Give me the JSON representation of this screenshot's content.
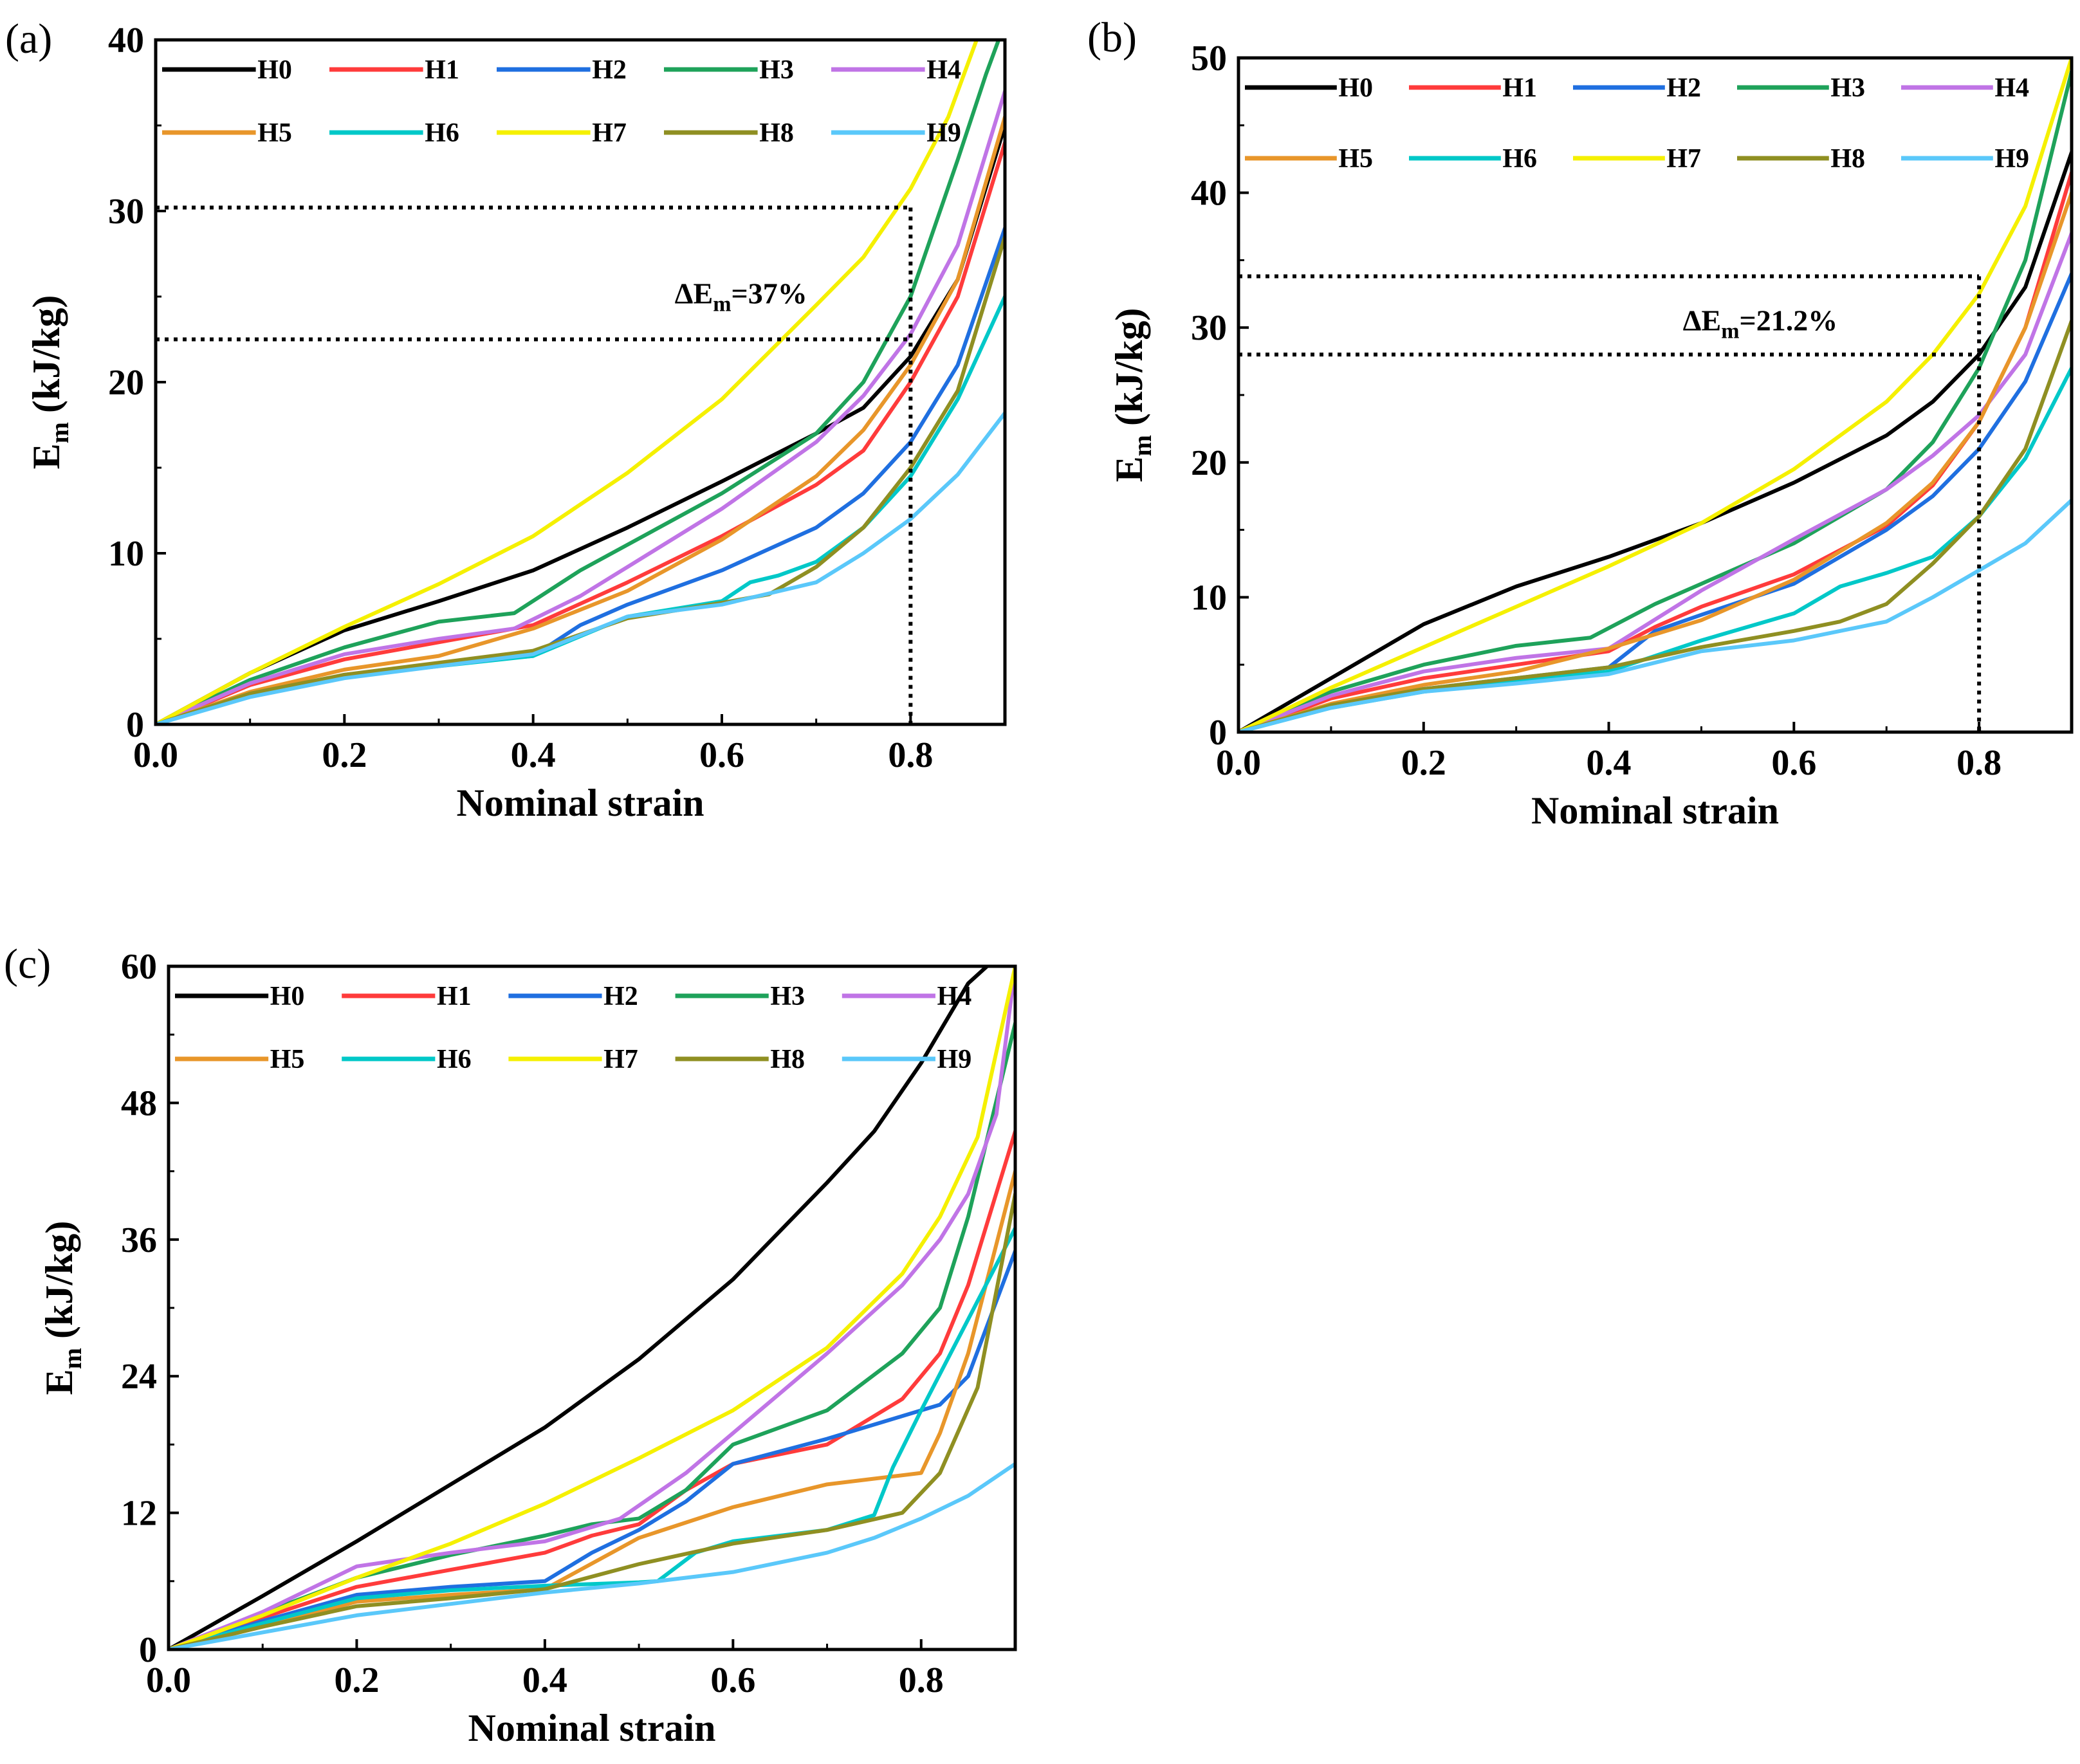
{
  "chart_data": [
    {
      "type": "line",
      "panel_label": "(a)",
      "xlabel": "Nominal strain",
      "ylabel_main": "E",
      "ylabel_sub": "m",
      "ylabel_unit": "(kJ/kg)",
      "xlim": [
        0,
        0.9
      ],
      "ylim": [
        0,
        40
      ],
      "xticks": [
        0,
        0.2,
        0.4,
        0.6,
        0.8
      ],
      "xtick_labels": [
        "0.0",
        "0.2",
        "0.4",
        "0.6",
        "0.8"
      ],
      "yticks": [
        0,
        10,
        20,
        30,
        40
      ],
      "ytick_labels": [
        "0",
        "10",
        "20",
        "30",
        "40"
      ],
      "legend_position": "top-left, two rows",
      "annotation": {
        "prefix": "ΔE",
        "sub": "m",
        "value": "=37%",
        "guide_x": 0.8,
        "guide_levels": [
          30.2,
          22.5
        ],
        "anchor": [
          0.55,
          24.6
        ]
      },
      "series": [
        {
          "name": "H0",
          "color": "#000000",
          "x": [
            0,
            0.1,
            0.2,
            0.3,
            0.4,
            0.5,
            0.6,
            0.7,
            0.75,
            0.8,
            0.85,
            0.9
          ],
          "y": [
            0,
            3,
            5.5,
            7.2,
            9,
            11.5,
            14.2,
            17,
            18.5,
            21.5,
            26,
            35
          ]
        },
        {
          "name": "H1",
          "color": "#ff3b3b",
          "x": [
            0,
            0.1,
            0.2,
            0.3,
            0.4,
            0.5,
            0.6,
            0.7,
            0.75,
            0.8,
            0.85,
            0.9
          ],
          "y": [
            0,
            2.3,
            3.8,
            4.8,
            5.8,
            8.3,
            11,
            14,
            16,
            20,
            25,
            34
          ]
        },
        {
          "name": "H2",
          "color": "#1f6fe0",
          "x": [
            0,
            0.1,
            0.2,
            0.3,
            0.4,
            0.45,
            0.5,
            0.6,
            0.7,
            0.75,
            0.8,
            0.85,
            0.9
          ],
          "y": [
            0,
            1.7,
            2.9,
            3.5,
            4,
            5.8,
            7,
            9,
            11.5,
            13.5,
            16.5,
            21,
            29
          ]
        },
        {
          "name": "H3",
          "color": "#1ea25a",
          "x": [
            0,
            0.1,
            0.2,
            0.3,
            0.38,
            0.45,
            0.5,
            0.6,
            0.7,
            0.75,
            0.8,
            0.85,
            0.88,
            0.9
          ],
          "y": [
            0,
            2.6,
            4.5,
            6,
            6.5,
            9,
            10.5,
            13.5,
            17,
            20,
            25,
            33,
            38,
            41
          ]
        },
        {
          "name": "H4",
          "color": "#c074e6",
          "x": [
            0,
            0.1,
            0.2,
            0.3,
            0.38,
            0.45,
            0.5,
            0.6,
            0.7,
            0.75,
            0.8,
            0.85,
            0.9
          ],
          "y": [
            0,
            2.4,
            4.1,
            5,
            5.6,
            7.5,
            9.2,
            12.6,
            16.5,
            19.2,
            22.8,
            28,
            37
          ]
        },
        {
          "name": "H5",
          "color": "#e8962a",
          "x": [
            0,
            0.1,
            0.2,
            0.3,
            0.4,
            0.5,
            0.6,
            0.7,
            0.75,
            0.8,
            0.85,
            0.9
          ],
          "y": [
            0,
            1.9,
            3.2,
            4,
            5.6,
            7.8,
            10.8,
            14.5,
            17.2,
            21,
            26,
            35.5
          ]
        },
        {
          "name": "H6",
          "color": "#00c8c8",
          "x": [
            0,
            0.1,
            0.2,
            0.3,
            0.4,
            0.5,
            0.6,
            0.63,
            0.66,
            0.7,
            0.75,
            0.8,
            0.85,
            0.9
          ],
          "y": [
            0,
            1.7,
            2.8,
            3.4,
            4,
            6.3,
            7.2,
            8.3,
            8.7,
            9.5,
            11.5,
            14.5,
            19,
            25
          ]
        },
        {
          "name": "H7",
          "color": "#f5f000",
          "x": [
            0,
            0.1,
            0.2,
            0.3,
            0.4,
            0.5,
            0.6,
            0.7,
            0.75,
            0.8,
            0.84,
            0.87
          ],
          "y": [
            0,
            3,
            5.7,
            8.2,
            11,
            14.7,
            19,
            24.5,
            27.3,
            31.3,
            35.5,
            40
          ]
        },
        {
          "name": "H8",
          "color": "#8f8f22",
          "x": [
            0,
            0.1,
            0.2,
            0.3,
            0.4,
            0.5,
            0.6,
            0.65,
            0.7,
            0.75,
            0.8,
            0.85,
            0.9
          ],
          "y": [
            0,
            1.8,
            2.9,
            3.6,
            4.3,
            6.2,
            7.1,
            7.6,
            9.2,
            11.5,
            15,
            19.5,
            28.5
          ]
        },
        {
          "name": "H9",
          "color": "#5ac8fa",
          "x": [
            0,
            0.1,
            0.2,
            0.3,
            0.4,
            0.5,
            0.6,
            0.7,
            0.75,
            0.8,
            0.85,
            0.9
          ],
          "y": [
            0,
            1.6,
            2.7,
            3.4,
            4.1,
            6.3,
            7,
            8.3,
            10,
            12,
            14.6,
            18.2
          ]
        }
      ]
    },
    {
      "type": "line",
      "panel_label": "(b)",
      "xlabel": "Nominal strain",
      "ylabel_main": "E",
      "ylabel_sub": "m",
      "ylabel_unit": "(kJ/kg)",
      "xlim": [
        0,
        0.9
      ],
      "ylim": [
        0,
        50
      ],
      "xticks": [
        0,
        0.2,
        0.4,
        0.6,
        0.8
      ],
      "xtick_labels": [
        "0.0",
        "0.2",
        "0.4",
        "0.6",
        "0.8"
      ],
      "yticks": [
        0,
        10,
        20,
        30,
        40,
        50
      ],
      "ytick_labels": [
        "0",
        "10",
        "20",
        "30",
        "40",
        "50"
      ],
      "legend_position": "top-left, two rows",
      "annotation": {
        "prefix": "ΔE",
        "sub": "m",
        "value": "=21.2%",
        "guide_x": 0.8,
        "guide_levels": [
          33.8,
          28
        ],
        "anchor": [
          0.48,
          29.8
        ]
      },
      "series": [
        {
          "name": "H0",
          "color": "#000000",
          "x": [
            0,
            0.1,
            0.2,
            0.3,
            0.4,
            0.5,
            0.6,
            0.7,
            0.75,
            0.8,
            0.85,
            0.9
          ],
          "y": [
            0,
            4,
            8,
            10.8,
            13,
            15.5,
            18.5,
            22,
            24.5,
            28,
            33,
            43
          ]
        },
        {
          "name": "H1",
          "color": "#ff3b3b",
          "x": [
            0,
            0.1,
            0.2,
            0.3,
            0.4,
            0.45,
            0.5,
            0.6,
            0.7,
            0.75,
            0.8,
            0.85,
            0.9
          ],
          "y": [
            0,
            2.5,
            4,
            5,
            6,
            7.8,
            9.3,
            11.7,
            15.3,
            18.3,
            23,
            30,
            41.5
          ]
        },
        {
          "name": "H2",
          "color": "#1f6fe0",
          "x": [
            0,
            0.1,
            0.2,
            0.3,
            0.4,
            0.45,
            0.5,
            0.6,
            0.7,
            0.75,
            0.8,
            0.85,
            0.9
          ],
          "y": [
            0,
            2,
            3.2,
            4,
            4.8,
            7.5,
            8.7,
            11,
            15,
            17.5,
            21,
            26,
            34
          ]
        },
        {
          "name": "H3",
          "color": "#1ea25a",
          "x": [
            0,
            0.1,
            0.2,
            0.3,
            0.38,
            0.45,
            0.5,
            0.6,
            0.7,
            0.75,
            0.8,
            0.85,
            0.9
          ],
          "y": [
            0,
            3,
            5,
            6.4,
            7,
            9.5,
            11,
            14,
            18,
            21.5,
            27,
            35,
            49
          ]
        },
        {
          "name": "H4",
          "color": "#c074e6",
          "x": [
            0,
            0.1,
            0.2,
            0.3,
            0.4,
            0.5,
            0.6,
            0.7,
            0.75,
            0.8,
            0.85,
            0.9
          ],
          "y": [
            0,
            2.7,
            4.5,
            5.5,
            6.2,
            10.5,
            14.3,
            18,
            20.5,
            23.5,
            28,
            37
          ]
        },
        {
          "name": "H5",
          "color": "#e8962a",
          "x": [
            0,
            0.1,
            0.2,
            0.3,
            0.4,
            0.5,
            0.6,
            0.7,
            0.75,
            0.8,
            0.85,
            0.9
          ],
          "y": [
            0,
            2.1,
            3.5,
            4.5,
            6.2,
            8.3,
            11.3,
            15.5,
            18.5,
            23,
            30,
            40
          ]
        },
        {
          "name": "H6",
          "color": "#00c8c8",
          "x": [
            0,
            0.1,
            0.2,
            0.3,
            0.4,
            0.5,
            0.6,
            0.65,
            0.7,
            0.75,
            0.8,
            0.85,
            0.9
          ],
          "y": [
            0,
            1.8,
            3,
            3.8,
            4.5,
            6.8,
            8.8,
            10.8,
            11.8,
            13,
            16,
            20.3,
            27
          ]
        },
        {
          "name": "H7",
          "color": "#f5f000",
          "x": [
            0,
            0.1,
            0.2,
            0.3,
            0.4,
            0.5,
            0.6,
            0.7,
            0.75,
            0.8,
            0.85,
            0.9
          ],
          "y": [
            0,
            3.3,
            6.3,
            9.3,
            12.3,
            15.5,
            19.5,
            24.5,
            28,
            32.5,
            39,
            50
          ]
        },
        {
          "name": "H8",
          "color": "#8f8f22",
          "x": [
            0,
            0.1,
            0.2,
            0.3,
            0.4,
            0.5,
            0.6,
            0.65,
            0.7,
            0.75,
            0.8,
            0.85,
            0.9
          ],
          "y": [
            0,
            2,
            3.2,
            4,
            4.8,
            6.3,
            7.5,
            8.2,
            9.5,
            12.5,
            16,
            21,
            30.5
          ]
        },
        {
          "name": "H9",
          "color": "#5ac8fa",
          "x": [
            0,
            0.1,
            0.2,
            0.3,
            0.4,
            0.5,
            0.6,
            0.7,
            0.75,
            0.8,
            0.85,
            0.9
          ],
          "y": [
            0,
            1.8,
            3,
            3.6,
            4.3,
            6,
            6.8,
            8.2,
            10,
            12,
            14,
            17.2
          ]
        }
      ]
    },
    {
      "type": "line",
      "panel_label": "(c)",
      "xlabel": "Nominal strain",
      "ylabel_main": "E",
      "ylabel_sub": "m",
      "ylabel_unit": "(kJ/kg)",
      "xlim": [
        0,
        0.9
      ],
      "ylim": [
        0,
        60
      ],
      "xticks": [
        0,
        0.2,
        0.4,
        0.6,
        0.8
      ],
      "xtick_labels": [
        "0.0",
        "0.2",
        "0.4",
        "0.6",
        "0.8"
      ],
      "yticks": [
        0,
        12,
        24,
        36,
        48,
        60
      ],
      "ytick_labels": [
        "0",
        "12",
        "24",
        "36",
        "48",
        "60"
      ],
      "legend_position": "top-left, two rows",
      "series": [
        {
          "name": "H0",
          "color": "#000000",
          "x": [
            0,
            0.1,
            0.2,
            0.3,
            0.4,
            0.5,
            0.6,
            0.7,
            0.75,
            0.8,
            0.85,
            0.87
          ],
          "y": [
            0,
            4.7,
            9.5,
            14.5,
            19.5,
            25.5,
            32.5,
            41,
            45.5,
            51.5,
            58.5,
            60
          ]
        },
        {
          "name": "H1",
          "color": "#ff3b3b",
          "x": [
            0,
            0.1,
            0.2,
            0.3,
            0.4,
            0.45,
            0.5,
            0.55,
            0.6,
            0.7,
            0.78,
            0.82,
            0.85,
            0.9
          ],
          "y": [
            0,
            2.8,
            5.5,
            7,
            8.5,
            10,
            11,
            14,
            16.3,
            18,
            22,
            26,
            32,
            45.5
          ]
        },
        {
          "name": "H2",
          "color": "#1f6fe0",
          "x": [
            0,
            0.1,
            0.2,
            0.3,
            0.4,
            0.45,
            0.5,
            0.55,
            0.6,
            0.7,
            0.78,
            0.82,
            0.85,
            0.9
          ],
          "y": [
            0,
            2.5,
            4.8,
            5.5,
            6,
            8.5,
            10.5,
            13,
            16.3,
            18.5,
            20.5,
            21.5,
            24,
            35
          ]
        },
        {
          "name": "H3",
          "color": "#1ea25a",
          "x": [
            0,
            0.1,
            0.2,
            0.3,
            0.4,
            0.45,
            0.5,
            0.55,
            0.6,
            0.7,
            0.78,
            0.82,
            0.85,
            0.9
          ],
          "y": [
            0,
            3.2,
            6.3,
            8.3,
            10,
            11,
            11.5,
            14,
            18,
            21,
            26,
            30,
            38,
            55
          ]
        },
        {
          "name": "H4",
          "color": "#c074e6",
          "x": [
            0,
            0.1,
            0.2,
            0.3,
            0.4,
            0.48,
            0.55,
            0.6,
            0.7,
            0.78,
            0.82,
            0.85,
            0.88,
            0.9
          ],
          "y": [
            0,
            3.3,
            7.3,
            8.5,
            9.5,
            11.5,
            15.5,
            19,
            26,
            32,
            36,
            40,
            47,
            60
          ]
        },
        {
          "name": "H5",
          "color": "#e8962a",
          "x": [
            0,
            0.1,
            0.2,
            0.3,
            0.4,
            0.5,
            0.6,
            0.7,
            0.75,
            0.8,
            0.82,
            0.85,
            0.9
          ],
          "y": [
            0,
            2,
            4.2,
            4.8,
            5.3,
            9.8,
            12.5,
            14.5,
            15,
            15.5,
            19,
            26,
            42
          ]
        },
        {
          "name": "H6",
          "color": "#00c8c8",
          "x": [
            0,
            0.1,
            0.2,
            0.3,
            0.4,
            0.5,
            0.52,
            0.56,
            0.6,
            0.7,
            0.75,
            0.77,
            0.8,
            0.85,
            0.9
          ],
          "y": [
            0,
            2.3,
            4.5,
            5.2,
            5.6,
            5.9,
            6,
            8.5,
            9.5,
            10.5,
            11.8,
            16,
            21,
            29,
            37
          ]
        },
        {
          "name": "H7",
          "color": "#f5f000",
          "x": [
            0,
            0.1,
            0.2,
            0.3,
            0.4,
            0.5,
            0.6,
            0.7,
            0.78,
            0.82,
            0.86,
            0.9
          ],
          "y": [
            0,
            3,
            6.3,
            9.3,
            12.8,
            16.8,
            21,
            26.5,
            33,
            38,
            45,
            60
          ]
        },
        {
          "name": "H8",
          "color": "#8f8f22",
          "x": [
            0,
            0.1,
            0.2,
            0.3,
            0.4,
            0.5,
            0.6,
            0.7,
            0.78,
            0.82,
            0.86,
            0.9
          ],
          "y": [
            0,
            2,
            3.8,
            4.5,
            5.3,
            7.5,
            9.3,
            10.5,
            12,
            15.5,
            23,
            40
          ]
        },
        {
          "name": "H9",
          "color": "#5ac8fa",
          "x": [
            0,
            0.1,
            0.2,
            0.3,
            0.4,
            0.5,
            0.6,
            0.7,
            0.75,
            0.8,
            0.85,
            0.9
          ],
          "y": [
            0,
            1.5,
            3,
            4,
            5,
            5.8,
            6.8,
            8.5,
            9.8,
            11.5,
            13.5,
            16.3
          ]
        }
      ]
    }
  ]
}
